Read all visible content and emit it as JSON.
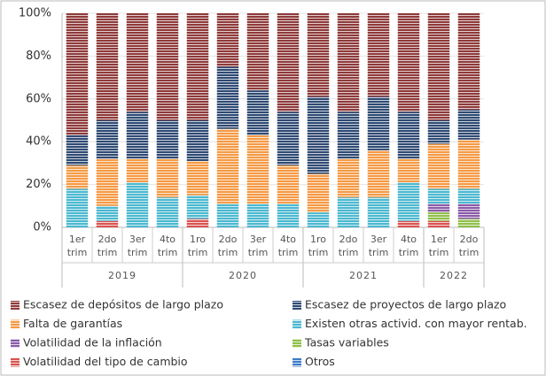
{
  "chart_data": {
    "type": "stacked_bar",
    "groups": [
      {
        "label": "2019",
        "categories": [
          "1er trim",
          "2do trim",
          "3er trim",
          "4to trim"
        ]
      },
      {
        "label": "2020",
        "categories": [
          "1ro trim",
          "2do trim",
          "3er trim",
          "4to trim"
        ]
      },
      {
        "label": "2021",
        "categories": [
          "1ro trim",
          "2do trim",
          "3er trim",
          "4to trim"
        ]
      },
      {
        "label": "2022",
        "categories": [
          "1er trim",
          "2do trim"
        ]
      }
    ],
    "series": [
      {
        "name": "Escasez de depósitos de largo plazo",
        "color": "#8e3a3a",
        "values": [
          57,
          50,
          46,
          50,
          50,
          25,
          36,
          46,
          39,
          46,
          39,
          46,
          50,
          45
        ]
      },
      {
        "name": "Escasez de proyectos de largo plazo",
        "color": "#2f4a73",
        "values": [
          14,
          18,
          22,
          18,
          19,
          29,
          21,
          25,
          36,
          22,
          25,
          22,
          11,
          14
        ]
      },
      {
        "name": "Falta de garantías",
        "color": "#f59a45",
        "values": [
          11,
          22,
          11,
          18,
          16,
          35,
          32,
          18,
          18,
          18,
          22,
          11,
          21,
          23
        ]
      },
      {
        "name": "Existen otras activid. con mayor rentab.",
        "color": "#4bb8d0",
        "values": [
          18,
          7,
          21,
          14,
          11,
          11,
          11,
          11,
          7,
          14,
          14,
          18,
          7,
          7
        ]
      },
      {
        "name": "Volatilidad de la inflación",
        "color": "#8a5aa8",
        "values": [
          0,
          0,
          0,
          0,
          0,
          0,
          0,
          0,
          0,
          0,
          0,
          0,
          4,
          7
        ]
      },
      {
        "name": "Tasas variables",
        "color": "#8fbf4a",
        "values": [
          0,
          0,
          0,
          0,
          0,
          0,
          0,
          0,
          0,
          0,
          0,
          0,
          4,
          4
        ]
      },
      {
        "name": "Volatilidad del tipo de cambio",
        "color": "#d9534f",
        "values": [
          0,
          3,
          0,
          0,
          4,
          0,
          0,
          0,
          0,
          0,
          0,
          3,
          3,
          0
        ]
      },
      {
        "name": "Otros",
        "color": "#3d7cc9",
        "values": [
          0,
          0,
          0,
          0,
          0,
          0,
          0,
          0,
          0,
          0,
          0,
          0,
          0,
          0
        ]
      }
    ],
    "ylim": [
      0,
      100
    ],
    "yticks": [
      {
        "value": 0,
        "label": "0%"
      },
      {
        "value": 20,
        "label": "20%"
      },
      {
        "value": 40,
        "label": "40%"
      },
      {
        "value": 60,
        "label": "60%"
      },
      {
        "value": 80,
        "label": "80%"
      },
      {
        "value": 100,
        "label": "100%"
      }
    ],
    "grid": true
  }
}
